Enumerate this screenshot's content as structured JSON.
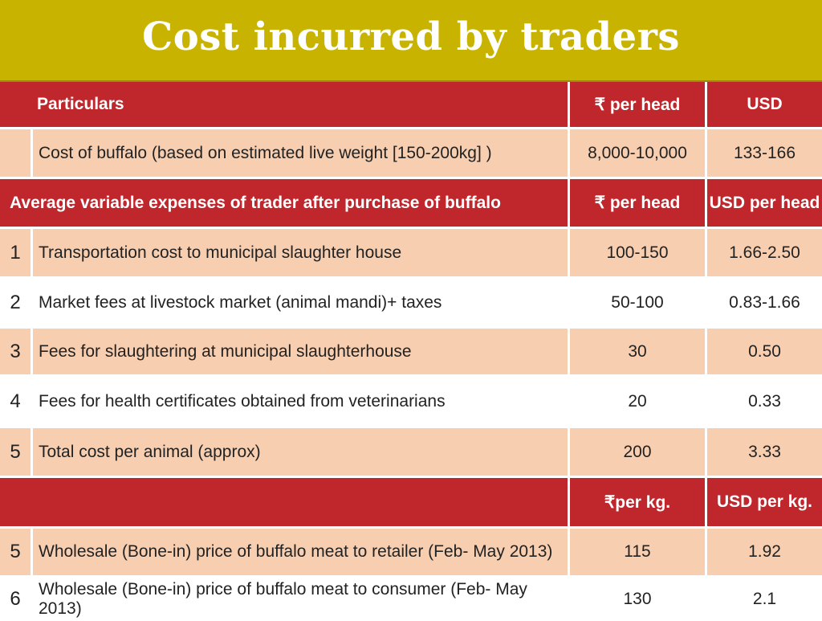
{
  "title": "Cost incurred by traders",
  "header1": {
    "particulars": "Particulars",
    "inr": "₹ per head",
    "usd": "USD"
  },
  "buffalo_row": {
    "particular": "Cost of buffalo (based on estimated live weight [150-200kg] )",
    "inr": "8,000-10,000",
    "usd": "133-166"
  },
  "header2": {
    "label": "Average variable expenses of trader after purchase of buffalo",
    "inr": "₹ per head",
    "usd": "USD per head"
  },
  "expenses": [
    {
      "num": "1",
      "particular": "Transportation cost to municipal slaughter house",
      "inr": "100-150",
      "usd": "1.66-2.50"
    },
    {
      "num": "2",
      "particular": "Market fees at livestock market (animal mandi)+ taxes",
      "inr": "50-100",
      "usd": "0.83-1.66"
    },
    {
      "num": "3",
      "particular": "Fees for slaughtering at municipal slaughterhouse",
      "inr": "30",
      "usd": "0.50"
    },
    {
      "num": "4",
      "particular": "Fees for health certificates obtained from veterinarians",
      "inr": "20",
      "usd": "0.33"
    },
    {
      "num": "5",
      "particular": "Total cost per animal (approx)",
      "inr": "200",
      "usd": "3.33"
    }
  ],
  "header3": {
    "label": "",
    "inr": "₹per kg.",
    "usd": "USD per kg."
  },
  "prices": [
    {
      "num": "5",
      "particular": "Wholesale (Bone-in) price of buffalo meat to retailer (Feb- May 2013)",
      "inr": "115",
      "usd": "1.92"
    },
    {
      "num": "6",
      "particular": "Wholesale (Bone-in) price of buffalo meat to consumer (Feb- May 2013)",
      "inr": "130",
      "usd": "2.1"
    }
  ],
  "colors": {
    "title_bg": "#c8b400",
    "header_red": "#c0272d",
    "row_peach": "#f8ceb0"
  }
}
